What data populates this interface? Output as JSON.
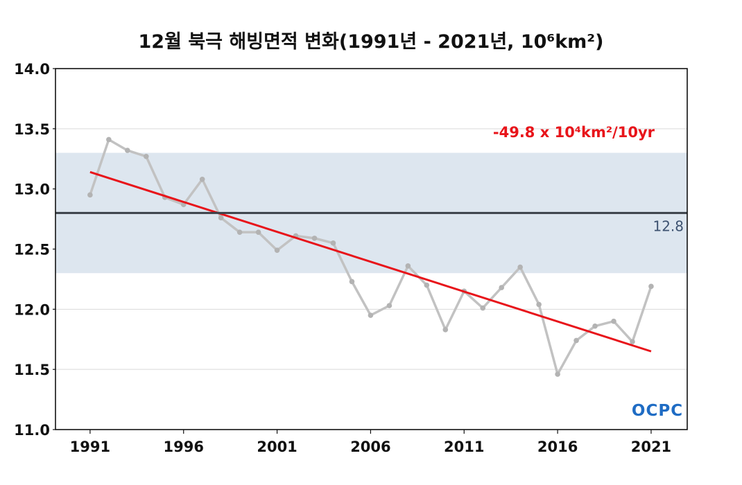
{
  "chart_data": {
    "type": "line",
    "title": "12월 북극 해빙면적 변화(1991년 - 2021년, 10⁶km²)",
    "xlabel": "",
    "ylabel": "",
    "x": [
      1991,
      1992,
      1993,
      1994,
      1995,
      1996,
      1997,
      1998,
      1999,
      2000,
      2001,
      2002,
      2003,
      2004,
      2005,
      2006,
      2007,
      2008,
      2009,
      2010,
      2011,
      2012,
      2013,
      2014,
      2015,
      2016,
      2017,
      2018,
      2019,
      2020,
      2021
    ],
    "series": [
      {
        "values": [
          12.95,
          13.41,
          13.32,
          13.27,
          12.93,
          12.87,
          13.08,
          12.76,
          12.64,
          12.64,
          12.49,
          12.61,
          12.59,
          12.55,
          12.23,
          11.95,
          12.03,
          12.36,
          12.2,
          11.83,
          12.15,
          12.01,
          12.18,
          12.35,
          12.04,
          11.46,
          11.74,
          11.86,
          11.9,
          11.73,
          12.19
        ]
      }
    ],
    "trend": {
      "start": [
        1991,
        13.14
      ],
      "end": [
        2021,
        11.65
      ],
      "label": "-49.8 x 10⁴km²/10yr"
    },
    "mean": {
      "value": 12.8,
      "label": "12.8"
    },
    "band": [
      12.3,
      13.3
    ],
    "xlim": [
      1989.15,
      2022.93
    ],
    "ylim": [
      11.0,
      14.0
    ],
    "xticks": [
      1991,
      1996,
      2001,
      2006,
      2011,
      2016,
      2021
    ],
    "yticks": [
      "11.0",
      "11.5",
      "12.0",
      "12.5",
      "13.0",
      "13.5",
      "14.0"
    ],
    "grid": true,
    "legend": "none",
    "colors": {
      "series": "#c2c2c2",
      "marker": "#b3b3b3",
      "trend": "#e8141a",
      "mean": "#3b4149",
      "band": "#dde6ef",
      "grid": "#d9d9d9",
      "annotation": "#e8141a",
      "mean_label": "#3d5270",
      "frame": "#111111"
    }
  },
  "logo": {
    "text": "OCPC"
  }
}
